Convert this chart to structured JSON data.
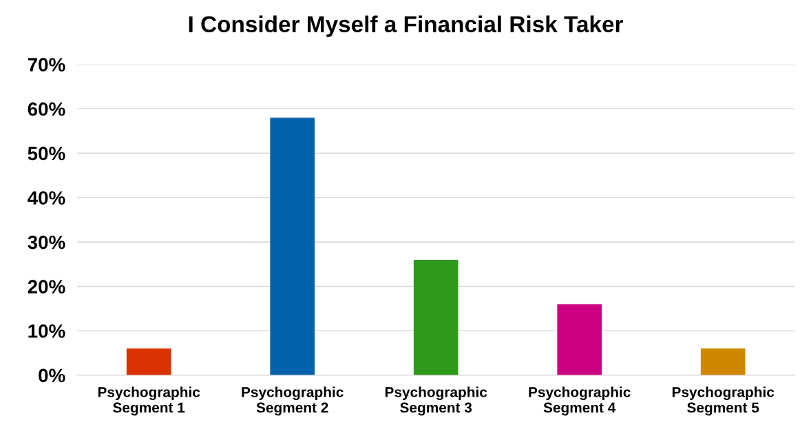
{
  "chart_data": {
    "type": "bar",
    "title": "I Consider Myself a Financial Risk Taker",
    "categories": [
      "Psychographic\nSegment 1",
      "Psychographic\nSegment 2",
      "Psychographic\nSegment 3",
      "Psychographic\nSegment 4",
      "Psychographic\nSegment 5"
    ],
    "values": [
      6,
      58,
      26,
      16,
      6
    ],
    "colors": [
      "#dc3100",
      "#0062ab",
      "#2e9a1c",
      "#cc0080",
      "#cf8700"
    ],
    "ylim": [
      0,
      70
    ],
    "yticks": [
      {
        "value": 0,
        "label": "0%"
      },
      {
        "value": 10,
        "label": "10%"
      },
      {
        "value": 20,
        "label": "20%"
      },
      {
        "value": 30,
        "label": "30%"
      },
      {
        "value": 40,
        "label": "40%"
      },
      {
        "value": 50,
        "label": "50%"
      },
      {
        "value": 60,
        "label": "60%"
      },
      {
        "value": 70,
        "label": "70%"
      }
    ],
    "grid": "y"
  }
}
